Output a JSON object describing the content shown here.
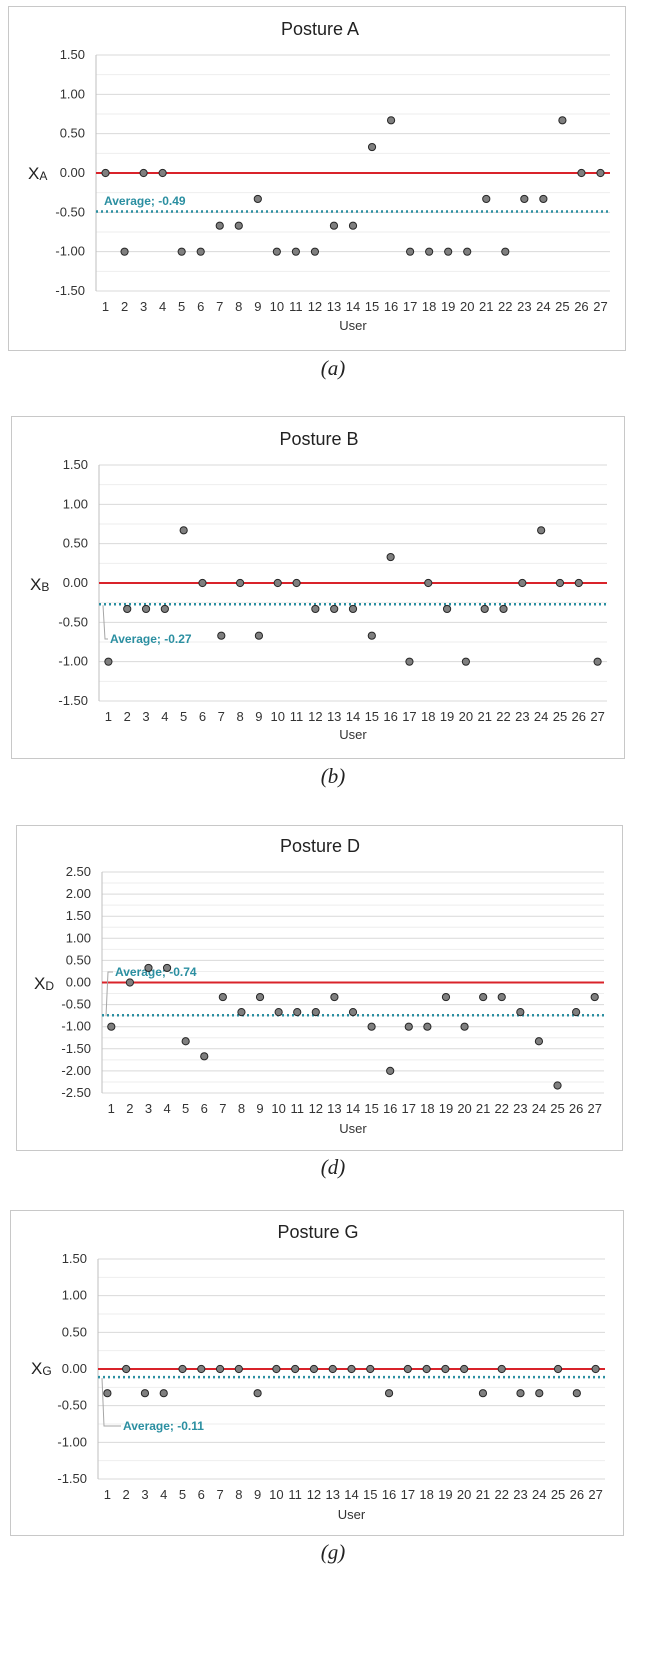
{
  "colors": {
    "zero_line": "#d9232a",
    "average_line": "#2b8fa1",
    "marker_fill": "#7f7f7f",
    "marker_stroke": "#262626",
    "grid": "#d9d9d9"
  },
  "chart_data": [
    {
      "type": "scatter",
      "title": "Posture A",
      "xlabel": "User",
      "ylabel_main": "X",
      "ylabel_sub": "A",
      "x": [
        1,
        2,
        3,
        4,
        5,
        6,
        7,
        8,
        9,
        10,
        11,
        12,
        13,
        14,
        15,
        16,
        17,
        18,
        19,
        20,
        21,
        22,
        23,
        24,
        25,
        26,
        27
      ],
      "y": [
        0,
        -1,
        0,
        0,
        -1,
        -1,
        -0.67,
        -0.67,
        -0.33,
        -1,
        -1,
        -1,
        -0.67,
        -0.67,
        0.33,
        0.67,
        -1,
        -1,
        -1,
        -1,
        -0.33,
        -1,
        -0.33,
        -0.33,
        0.67,
        0,
        0
      ],
      "yticks": [
        "1.50",
        "1.00",
        "0.50",
        "0.00",
        "-0.50",
        "-1.00",
        "-1.50"
      ],
      "ylim": [
        -1.5,
        1.5
      ],
      "average": -0.49,
      "average_label": "Average; -0.49",
      "caption": "(a)"
    },
    {
      "type": "scatter",
      "title": "Posture B",
      "xlabel": "User",
      "ylabel_main": "X",
      "ylabel_sub": "B",
      "x": [
        1,
        2,
        3,
        4,
        5,
        6,
        7,
        8,
        9,
        10,
        11,
        12,
        13,
        14,
        15,
        16,
        17,
        18,
        19,
        20,
        21,
        22,
        23,
        24,
        25,
        26,
        27
      ],
      "y": [
        -1,
        -0.33,
        -0.33,
        -0.33,
        0.67,
        0,
        -0.67,
        0,
        -0.67,
        0,
        0,
        -0.33,
        -0.33,
        -0.33,
        -0.67,
        0.33,
        -1,
        0,
        -0.33,
        -1,
        -0.33,
        -0.33,
        0,
        0.67,
        0,
        0,
        -1
      ],
      "yticks": [
        "1.50",
        "1.00",
        "0.50",
        "0.00",
        "-0.50",
        "-1.00",
        "-1.50"
      ],
      "ylim": [
        -1.5,
        1.5
      ],
      "average": -0.27,
      "average_label": "Average; -0.27",
      "caption": "(b)"
    },
    {
      "type": "scatter",
      "title": "Posture D",
      "xlabel": "User",
      "ylabel_main": "X",
      "ylabel_sub": "D",
      "x": [
        1,
        2,
        3,
        4,
        5,
        6,
        7,
        8,
        9,
        10,
        11,
        12,
        13,
        14,
        15,
        16,
        17,
        18,
        19,
        20,
        21,
        22,
        23,
        24,
        25,
        26,
        27
      ],
      "y": [
        -1,
        0,
        0.33,
        0.33,
        -1.33,
        -1.67,
        -0.33,
        -0.67,
        -0.33,
        -0.67,
        -0.67,
        -0.67,
        -0.33,
        -0.67,
        -1,
        -2,
        -1,
        -1,
        -0.33,
        -1,
        -0.33,
        -0.33,
        -0.67,
        -1.33,
        -2.33,
        -0.67,
        -0.33
      ],
      "yticks": [
        "2.50",
        "2.00",
        "1.50",
        "1.00",
        "0.50",
        "0.00",
        "-0.50",
        "-1.00",
        "-1.50",
        "-2.00",
        "-2.50"
      ],
      "ylim": [
        -2.5,
        2.5
      ],
      "average": -0.74,
      "average_label": "Average; -0.74",
      "caption": "(d)"
    },
    {
      "type": "scatter",
      "title": "Posture G",
      "xlabel": "User",
      "ylabel_main": "X",
      "ylabel_sub": "G",
      "x": [
        1,
        2,
        3,
        4,
        5,
        6,
        7,
        8,
        9,
        10,
        11,
        12,
        13,
        14,
        15,
        16,
        17,
        18,
        19,
        20,
        21,
        22,
        23,
        24,
        25,
        26,
        27
      ],
      "y": [
        -0.33,
        0,
        -0.33,
        -0.33,
        0,
        0,
        0,
        0,
        -0.33,
        0,
        0,
        0,
        0,
        0,
        0,
        -0.33,
        0,
        0,
        0,
        0,
        -0.33,
        0,
        -0.33,
        -0.33,
        0,
        -0.33,
        0
      ],
      "yticks": [
        "1.50",
        "1.00",
        "0.50",
        "0.00",
        "-0.50",
        "-1.00",
        "-1.50"
      ],
      "ylim": [
        -1.5,
        1.5
      ],
      "average": -0.11,
      "average_label": "Average; -0.11",
      "caption": "(g)"
    }
  ]
}
